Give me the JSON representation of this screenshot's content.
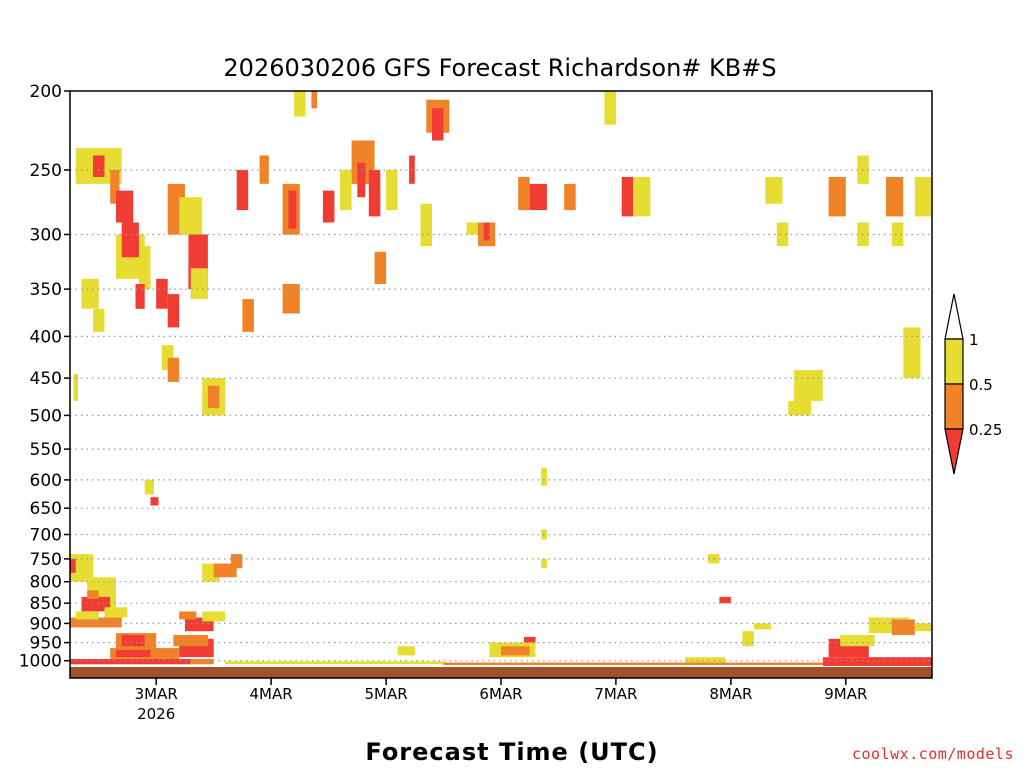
{
  "chart_data": {
    "type": "heatmap",
    "title": "2026030206 GFS Forecast Richardson# KB#S",
    "xlabel": "Forecast Time (UTC)",
    "ylabel": "",
    "y_axis_scale": "pressure (log, inverted)",
    "ylim": [
      1050,
      200
    ],
    "xlim_days_from_3MAR00Z": [
      -0.75,
      6.75
    ],
    "y_ticks": [
      200,
      250,
      300,
      350,
      400,
      450,
      500,
      550,
      600,
      650,
      700,
      750,
      800,
      850,
      900,
      950,
      1000
    ],
    "x_ticks": [
      {
        "label": "3MAR",
        "sublabel": "2026",
        "day": 0
      },
      {
        "label": "4MAR",
        "sublabel": "",
        "day": 1
      },
      {
        "label": "5MAR",
        "sublabel": "",
        "day": 2
      },
      {
        "label": "6MAR",
        "sublabel": "",
        "day": 3
      },
      {
        "label": "7MAR",
        "sublabel": "",
        "day": 4
      },
      {
        "label": "8MAR",
        "sublabel": "",
        "day": 5
      },
      {
        "label": "9MAR",
        "sublabel": "",
        "day": 6
      }
    ],
    "legend": {
      "placement": "right",
      "labels": [
        "1",
        "0.5",
        "0.25"
      ],
      "bins": [
        {
          "range": "0.5 to 1",
          "color": "#e6dc32"
        },
        {
          "range": "0.25 to 0.5",
          "color": "#f08228"
        },
        {
          "range": "below 0.25",
          "color": "#f03c32"
        }
      ]
    },
    "colors": {
      "low": "#f03c32",
      "mid": "#f08228",
      "high": "#e6dc32",
      "ground": "#a0522d",
      "grid": "#999999"
    },
    "regions": [
      {
        "day_start": -0.72,
        "day_end": -0.68,
        "p_top": 445,
        "p_bottom": 480,
        "class": "high"
      },
      {
        "day_start": -0.7,
        "day_end": -0.3,
        "p_top": 235,
        "p_bottom": 260,
        "class": "high"
      },
      {
        "day_start": -0.55,
        "day_end": -0.45,
        "p_top": 240,
        "p_bottom": 255,
        "class": "low"
      },
      {
        "day_start": -0.4,
        "day_end": -0.32,
        "p_top": 250,
        "p_bottom": 275,
        "class": "mid"
      },
      {
        "day_start": -0.35,
        "day_end": -0.2,
        "p_top": 265,
        "p_bottom": 290,
        "class": "low"
      },
      {
        "day_start": -0.65,
        "day_end": -0.5,
        "p_top": 340,
        "p_bottom": 370,
        "class": "high"
      },
      {
        "day_start": -0.55,
        "day_end": -0.45,
        "p_top": 370,
        "p_bottom": 395,
        "class": "high"
      },
      {
        "day_start": -0.35,
        "day_end": -0.1,
        "p_top": 300,
        "p_bottom": 340,
        "class": "high"
      },
      {
        "day_start": -0.3,
        "day_end": -0.15,
        "p_top": 290,
        "p_bottom": 320,
        "class": "low"
      },
      {
        "day_start": -0.15,
        "day_end": -0.05,
        "p_top": 310,
        "p_bottom": 350,
        "class": "high"
      },
      {
        "day_start": -0.18,
        "day_end": -0.1,
        "p_top": 345,
        "p_bottom": 370,
        "class": "low"
      },
      {
        "day_start": 0.1,
        "day_end": 0.25,
        "p_top": 260,
        "p_bottom": 300,
        "class": "mid"
      },
      {
        "day_start": 0.2,
        "day_end": 0.4,
        "p_top": 270,
        "p_bottom": 300,
        "class": "high"
      },
      {
        "day_start": 0.0,
        "day_end": 0.1,
        "p_top": 340,
        "p_bottom": 370,
        "class": "low"
      },
      {
        "day_start": 0.1,
        "day_end": 0.2,
        "p_top": 355,
        "p_bottom": 390,
        "class": "low"
      },
      {
        "day_start": 0.28,
        "day_end": 0.45,
        "p_top": 300,
        "p_bottom": 350,
        "class": "low"
      },
      {
        "day_start": 0.3,
        "day_end": 0.45,
        "p_top": 330,
        "p_bottom": 360,
        "class": "high"
      },
      {
        "day_start": 0.4,
        "day_end": 0.6,
        "p_top": 450,
        "p_bottom": 500,
        "class": "high"
      },
      {
        "day_start": 0.45,
        "day_end": 0.55,
        "p_top": 460,
        "p_bottom": 490,
        "class": "mid"
      },
      {
        "day_start": 0.05,
        "day_end": 0.15,
        "p_top": 410,
        "p_bottom": 440,
        "class": "high"
      },
      {
        "day_start": -0.1,
        "day_end": -0.02,
        "p_top": 600,
        "p_bottom": 625,
        "class": "high"
      },
      {
        "day_start": -0.05,
        "day_end": 0.02,
        "p_top": 630,
        "p_bottom": 645,
        "class": "low"
      },
      {
        "day_start": 0.1,
        "day_end": 0.2,
        "p_top": 425,
        "p_bottom": 455,
        "class": "mid"
      },
      {
        "day_start": 0.7,
        "day_end": 0.8,
        "p_top": 250,
        "p_bottom": 280,
        "class": "low"
      },
      {
        "day_start": 0.75,
        "day_end": 0.85,
        "p_top": 360,
        "p_bottom": 395,
        "class": "mid"
      },
      {
        "day_start": 0.9,
        "day_end": 0.98,
        "p_top": 240,
        "p_bottom": 260,
        "class": "mid"
      },
      {
        "day_start": 1.1,
        "day_end": 1.25,
        "p_top": 260,
        "p_bottom": 300,
        "class": "mid"
      },
      {
        "day_start": 1.15,
        "day_end": 1.22,
        "p_top": 265,
        "p_bottom": 295,
        "class": "low"
      },
      {
        "day_start": 1.1,
        "day_end": 1.25,
        "p_top": 345,
        "p_bottom": 375,
        "class": "mid"
      },
      {
        "day_start": 1.2,
        "day_end": 1.3,
        "p_top": 200,
        "p_bottom": 215,
        "class": "high"
      },
      {
        "day_start": 1.35,
        "day_end": 1.4,
        "p_top": 200,
        "p_bottom": 210,
        "class": "mid"
      },
      {
        "day_start": 1.45,
        "day_end": 1.55,
        "p_top": 265,
        "p_bottom": 290,
        "class": "low"
      },
      {
        "day_start": 1.7,
        "day_end": 1.9,
        "p_top": 230,
        "p_bottom": 260,
        "class": "mid"
      },
      {
        "day_start": 1.75,
        "day_end": 1.82,
        "p_top": 245,
        "p_bottom": 270,
        "class": "low"
      },
      {
        "day_start": 1.6,
        "day_end": 1.7,
        "p_top": 250,
        "p_bottom": 280,
        "class": "high"
      },
      {
        "day_start": 1.85,
        "day_end": 1.95,
        "p_top": 250,
        "p_bottom": 285,
        "class": "low"
      },
      {
        "day_start": 2.0,
        "day_end": 2.1,
        "p_top": 250,
        "p_bottom": 280,
        "class": "high"
      },
      {
        "day_start": 1.9,
        "day_end": 2.0,
        "p_top": 315,
        "p_bottom": 345,
        "class": "mid"
      },
      {
        "day_start": 2.35,
        "day_end": 2.55,
        "p_top": 205,
        "p_bottom": 225,
        "class": "mid"
      },
      {
        "day_start": 2.4,
        "day_end": 2.5,
        "p_top": 210,
        "p_bottom": 230,
        "class": "low"
      },
      {
        "day_start": 2.2,
        "day_end": 2.25,
        "p_top": 240,
        "p_bottom": 260,
        "class": "low"
      },
      {
        "day_start": 2.8,
        "day_end": 2.95,
        "p_top": 290,
        "p_bottom": 310,
        "class": "mid"
      },
      {
        "day_start": 2.85,
        "day_end": 2.9,
        "p_top": 290,
        "p_bottom": 305,
        "class": "low"
      },
      {
        "day_start": 2.7,
        "day_end": 2.8,
        "p_top": 290,
        "p_bottom": 300,
        "class": "high"
      },
      {
        "day_start": 3.15,
        "day_end": 3.25,
        "p_top": 255,
        "p_bottom": 280,
        "class": "mid"
      },
      {
        "day_start": 3.25,
        "day_end": 3.4,
        "p_top": 260,
        "p_bottom": 280,
        "class": "low"
      },
      {
        "day_start": 3.55,
        "day_end": 3.65,
        "p_top": 260,
        "p_bottom": 280,
        "class": "mid"
      },
      {
        "day_start": 3.9,
        "day_end": 4.0,
        "p_top": 200,
        "p_bottom": 220,
        "class": "high"
      },
      {
        "day_start": 4.05,
        "day_end": 4.15,
        "p_top": 255,
        "p_bottom": 285,
        "class": "low"
      },
      {
        "day_start": 4.15,
        "day_end": 4.3,
        "p_top": 255,
        "p_bottom": 285,
        "class": "high"
      },
      {
        "day_start": 5.4,
        "day_end": 5.5,
        "p_top": 290,
        "p_bottom": 310,
        "class": "high"
      },
      {
        "day_start": 5.85,
        "day_end": 6.0,
        "p_top": 255,
        "p_bottom": 285,
        "class": "mid"
      },
      {
        "day_start": 6.1,
        "day_end": 6.2,
        "p_top": 240,
        "p_bottom": 260,
        "class": "high"
      },
      {
        "day_start": 6.1,
        "day_end": 6.2,
        "p_top": 290,
        "p_bottom": 310,
        "class": "high"
      },
      {
        "day_start": 6.35,
        "day_end": 6.5,
        "p_top": 255,
        "p_bottom": 285,
        "class": "mid"
      },
      {
        "day_start": 6.6,
        "day_end": 6.75,
        "p_top": 255,
        "p_bottom": 285,
        "class": "high"
      },
      {
        "day_start": 6.4,
        "day_end": 6.5,
        "p_top": 290,
        "p_bottom": 310,
        "class": "high"
      },
      {
        "day_start": 5.3,
        "day_end": 5.45,
        "p_top": 255,
        "p_bottom": 275,
        "class": "high"
      },
      {
        "day_start": 6.5,
        "day_end": 6.65,
        "p_top": 390,
        "p_bottom": 450,
        "class": "high"
      },
      {
        "day_start": 5.55,
        "day_end": 5.8,
        "p_top": 440,
        "p_bottom": 480,
        "class": "high"
      },
      {
        "day_start": 5.5,
        "day_end": 5.7,
        "p_top": 480,
        "p_bottom": 500,
        "class": "high"
      },
      {
        "day_start": 4.8,
        "day_end": 4.9,
        "p_top": 740,
        "p_bottom": 760,
        "class": "high"
      },
      {
        "day_start": 4.9,
        "day_end": 5.0,
        "p_top": 835,
        "p_bottom": 850,
        "class": "low"
      },
      {
        "day_start": 5.1,
        "day_end": 5.2,
        "p_top": 920,
        "p_bottom": 960,
        "class": "high"
      },
      {
        "day_start": 5.2,
        "day_end": 5.35,
        "p_top": 900,
        "p_bottom": 915,
        "class": "high"
      },
      {
        "day_start": 5.85,
        "day_end": 6.2,
        "p_top": 940,
        "p_bottom": 990,
        "class": "low"
      },
      {
        "day_start": 5.95,
        "day_end": 6.25,
        "p_top": 930,
        "p_bottom": 960,
        "class": "high"
      },
      {
        "day_start": 6.2,
        "day_end": 6.55,
        "p_top": 885,
        "p_bottom": 925,
        "class": "high"
      },
      {
        "day_start": 6.4,
        "day_end": 6.6,
        "p_top": 890,
        "p_bottom": 930,
        "class": "mid"
      },
      {
        "day_start": 6.6,
        "day_end": 6.75,
        "p_top": 900,
        "p_bottom": 920,
        "class": "high"
      },
      {
        "day_start": 5.8,
        "day_end": 6.75,
        "p_top": 990,
        "p_bottom": 1015,
        "class": "low"
      },
      {
        "day_start": 2.9,
        "day_end": 3.3,
        "p_top": 950,
        "p_bottom": 990,
        "class": "high"
      },
      {
        "day_start": 3.0,
        "day_end": 3.25,
        "p_top": 960,
        "p_bottom": 985,
        "class": "mid"
      },
      {
        "day_start": 3.2,
        "day_end": 3.3,
        "p_top": 935,
        "p_bottom": 950,
        "class": "low"
      },
      {
        "day_start": 3.35,
        "day_end": 3.4,
        "p_top": 580,
        "p_bottom": 610,
        "class": "high"
      },
      {
        "day_start": 3.35,
        "day_end": 3.4,
        "p_top": 690,
        "p_bottom": 710,
        "class": "high"
      },
      {
        "day_start": 3.35,
        "day_end": 3.4,
        "p_top": 750,
        "p_bottom": 770,
        "class": "high"
      },
      {
        "day_start": 2.3,
        "day_end": 2.4,
        "p_top": 275,
        "p_bottom": 310,
        "class": "high"
      },
      {
        "day_start": -0.75,
        "day_end": -0.55,
        "p_top": 740,
        "p_bottom": 800,
        "class": "high"
      },
      {
        "day_start": -0.75,
        "day_end": -0.7,
        "p_top": 750,
        "p_bottom": 780,
        "class": "low"
      },
      {
        "day_start": -0.6,
        "day_end": -0.35,
        "p_top": 790,
        "p_bottom": 860,
        "class": "high"
      },
      {
        "day_start": -0.65,
        "day_end": -0.4,
        "p_top": 835,
        "p_bottom": 870,
        "class": "low"
      },
      {
        "day_start": -0.6,
        "day_end": -0.5,
        "p_top": 820,
        "p_bottom": 840,
        "class": "mid"
      },
      {
        "day_start": -0.75,
        "day_end": -0.3,
        "p_top": 885,
        "p_bottom": 910,
        "class": "mid"
      },
      {
        "day_start": -0.7,
        "day_end": -0.5,
        "p_top": 870,
        "p_bottom": 890,
        "class": "high"
      },
      {
        "day_start": -0.45,
        "day_end": -0.25,
        "p_top": 860,
        "p_bottom": 885,
        "class": "high"
      },
      {
        "day_start": -0.35,
        "day_end": 0.0,
        "p_top": 925,
        "p_bottom": 970,
        "class": "mid"
      },
      {
        "day_start": -0.3,
        "day_end": -0.1,
        "p_top": 930,
        "p_bottom": 960,
        "class": "low"
      },
      {
        "day_start": -0.4,
        "day_end": 0.2,
        "p_top": 965,
        "p_bottom": 995,
        "class": "mid"
      },
      {
        "day_start": -0.35,
        "day_end": -0.05,
        "p_top": 970,
        "p_bottom": 990,
        "class": "low"
      },
      {
        "day_start": 0.2,
        "day_end": 0.5,
        "p_top": 940,
        "p_bottom": 990,
        "class": "low"
      },
      {
        "day_start": 0.15,
        "day_end": 0.45,
        "p_top": 930,
        "p_bottom": 960,
        "class": "mid"
      },
      {
        "day_start": 0.25,
        "day_end": 0.5,
        "p_top": 885,
        "p_bottom": 920,
        "class": "low"
      },
      {
        "day_start": 0.2,
        "day_end": 0.35,
        "p_top": 870,
        "p_bottom": 890,
        "class": "mid"
      },
      {
        "day_start": 0.4,
        "day_end": 0.6,
        "p_top": 870,
        "p_bottom": 895,
        "class": "high"
      },
      {
        "day_start": 0.4,
        "day_end": 0.55,
        "p_top": 760,
        "p_bottom": 800,
        "class": "high"
      },
      {
        "day_start": 0.5,
        "day_end": 0.7,
        "p_top": 760,
        "p_bottom": 790,
        "class": "mid"
      },
      {
        "day_start": 0.65,
        "day_end": 0.75,
        "p_top": 740,
        "p_bottom": 770,
        "class": "mid"
      },
      {
        "day_start": -0.75,
        "day_end": 0.3,
        "p_top": 995,
        "p_bottom": 1010,
        "class": "low"
      },
      {
        "day_start": 0.3,
        "day_end": 0.5,
        "p_top": 995,
        "p_bottom": 1010,
        "class": "mid"
      },
      {
        "day_start": 0.6,
        "day_end": 2.5,
        "p_top": 1002,
        "p_bottom": 1010,
        "class": "high"
      },
      {
        "day_start": 2.5,
        "day_end": 5.8,
        "p_top": 1005,
        "p_bottom": 1012,
        "class": "mid"
      },
      {
        "day_start": 4.6,
        "day_end": 4.95,
        "p_top": 990,
        "p_bottom": 1005,
        "class": "high"
      },
      {
        "day_start": 2.1,
        "day_end": 2.25,
        "p_top": 960,
        "p_bottom": 985,
        "class": "high"
      }
    ]
  }
}
